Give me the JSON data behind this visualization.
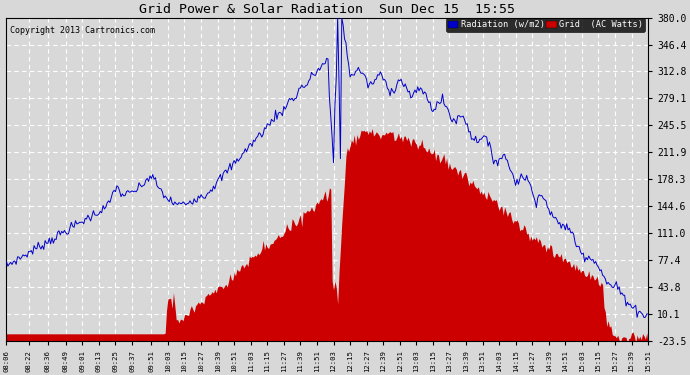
{
  "title": "Grid Power & Solar Radiation  Sun Dec 15  15:55",
  "copyright": "Copyright 2013 Cartronics.com",
  "yticks": [
    -23.5,
    10.1,
    43.8,
    77.4,
    111.0,
    144.6,
    178.3,
    211.9,
    245.5,
    279.1,
    312.8,
    346.4,
    380.0
  ],
  "ymin": -23.5,
  "ymax": 380.0,
  "bg_color": "#d8d8d8",
  "legend_radiation_label": "Radiation (w/m2)",
  "legend_grid_label": "Grid  (AC Watts)",
  "radiation_color": "#0000cc",
  "grid_fill_color": "#cc0000",
  "xtick_labels": [
    "08:06",
    "08:22",
    "08:36",
    "08:49",
    "09:01",
    "09:13",
    "09:25",
    "09:37",
    "09:51",
    "10:03",
    "10:15",
    "10:27",
    "10:39",
    "10:51",
    "11:03",
    "11:15",
    "11:27",
    "11:39",
    "11:51",
    "12:03",
    "12:15",
    "12:27",
    "12:39",
    "12:51",
    "13:03",
    "13:15",
    "13:27",
    "13:39",
    "13:51",
    "14:03",
    "14:15",
    "14:27",
    "14:39",
    "14:51",
    "15:03",
    "15:15",
    "15:27",
    "15:39",
    "15:51"
  ]
}
